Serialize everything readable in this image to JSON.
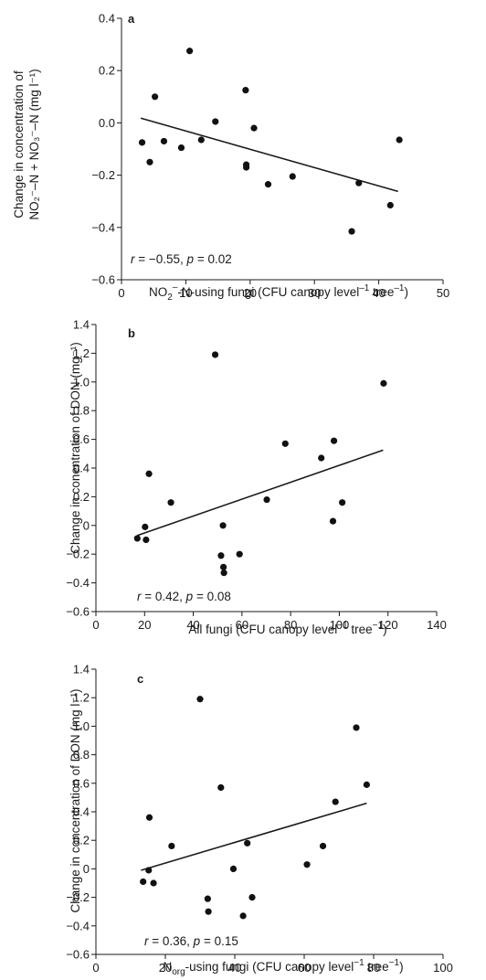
{
  "chart_data": [
    {
      "type": "scatter",
      "panel_label": "a",
      "x_label": {
        "main": "NO",
        "sub": "2",
        "sup": "–",
        "rest": "-N-using fungi (CFU canopy level",
        "exp": "–1",
        "tail": " tree",
        "exp2": "–1",
        "close": ")"
      },
      "y_label_line1": "Change in concentration of",
      "y_label_line2": "NO₂⁻–N + NO₃⁻–N (mg l⁻¹)",
      "xlim": [
        0,
        50
      ],
      "ylim": [
        -0.6,
        0.4
      ],
      "xticks": [
        "0",
        "10",
        "20",
        "30",
        "40",
        "50"
      ],
      "yticks": [
        "−0.6",
        "−0.4",
        "−0.2",
        "0.0",
        "0.2",
        "0.4"
      ],
      "x": [
        3.2,
        4.4,
        5.2,
        6.6,
        9.3,
        10.6,
        12.4,
        14.6,
        19.3,
        19.4,
        19.4,
        20.6,
        22.8,
        26.6,
        35.8,
        36.9,
        41.8,
        43.2
      ],
      "y": [
        -0.075,
        -0.15,
        0.1,
        -0.07,
        -0.095,
        0.275,
        -0.065,
        0.005,
        0.125,
        -0.16,
        -0.17,
        -0.02,
        -0.235,
        -0.205,
        -0.415,
        -0.23,
        -0.315,
        -0.065
      ],
      "fit_line": {
        "x": [
          3.0,
          43.0
        ],
        "y": [
          0.018,
          -0.262
        ]
      },
      "stat_parts": {
        "r": "r",
        "r_val": " = −0.55, ",
        "p": "p",
        "p_val": " = 0.02"
      }
    },
    {
      "type": "scatter",
      "panel_label": "b",
      "x_label": {
        "main": "All fungi (CFU canopy level",
        "exp": "−1",
        "tail": " tree",
        "exp2": "−1",
        "close": ")"
      },
      "y_label": "Change in conentration of DON (mg⁻¹)",
      "xlim": [
        0,
        140
      ],
      "ylim": [
        -0.6,
        1.4
      ],
      "xticks": [
        "0",
        "20",
        "40",
        "60",
        "80",
        "100",
        "120",
        "140"
      ],
      "yticks": [
        "−0.6",
        "−0.4",
        "−0.2",
        "0",
        "0.2",
        "0.4",
        "0.6",
        "0.8",
        "1.0",
        "1.2",
        "1.4"
      ],
      "x": [
        17.0,
        20.2,
        20.6,
        21.8,
        30.8,
        49.0,
        51.4,
        52.2,
        52.4,
        52.6,
        59.0,
        70.2,
        77.8,
        92.6,
        97.4,
        97.8,
        101.2,
        118.2
      ],
      "y": [
        -0.09,
        -0.01,
        -0.1,
        0.36,
        0.16,
        1.19,
        -0.21,
        0.0,
        -0.29,
        -0.33,
        -0.2,
        0.18,
        0.57,
        0.47,
        0.03,
        0.59,
        0.16,
        0.99
      ],
      "fit_line": {
        "x": [
          17.0,
          118.0
        ],
        "y": [
          -0.07,
          0.525
        ]
      },
      "stat_parts": {
        "r": "r",
        "r_val": " = 0.42, ",
        "p": "p",
        "p_val": " = 0.08"
      }
    },
    {
      "type": "scatter",
      "panel_label": "c",
      "x_label": {
        "main": "N",
        "sub": "org",
        "rest": "-using fungi (CFU canopy level",
        "exp": "−1",
        "tail": " tree",
        "exp2": "−1",
        "close": ")"
      },
      "y_label": "Change in concentration of DON (mg l⁻¹)",
      "xlim": [
        0,
        100
      ],
      "ylim": [
        -0.6,
        1.4
      ],
      "xticks": [
        "0",
        "20",
        "40",
        "60",
        "80",
        "100"
      ],
      "yticks": [
        "−0.6",
        "−0.4",
        "−0.2",
        "0",
        "0.2",
        "0.4",
        "0.6",
        "0.8",
        "1.0",
        "1.2",
        "1.4"
      ],
      "x": [
        13.6,
        15.2,
        15.4,
        16.6,
        21.8,
        30.0,
        32.2,
        32.4,
        36.0,
        39.6,
        42.4,
        43.6,
        45.0,
        60.8,
        65.4,
        69.0,
        75.0,
        78.0
      ],
      "y": [
        -0.09,
        -0.01,
        0.36,
        -0.1,
        0.16,
        1.19,
        -0.21,
        -0.3,
        0.57,
        0.0,
        -0.33,
        0.18,
        -0.2,
        0.03,
        0.16,
        0.47,
        0.99,
        0.59
      ],
      "fit_line": {
        "x": [
          13.0,
          78.0
        ],
        "y": [
          -0.01,
          0.46
        ]
      },
      "stat_parts": {
        "r": "r",
        "r_val": " = 0.36, ",
        "p": "p",
        "p_val": " = 0.15"
      }
    }
  ]
}
